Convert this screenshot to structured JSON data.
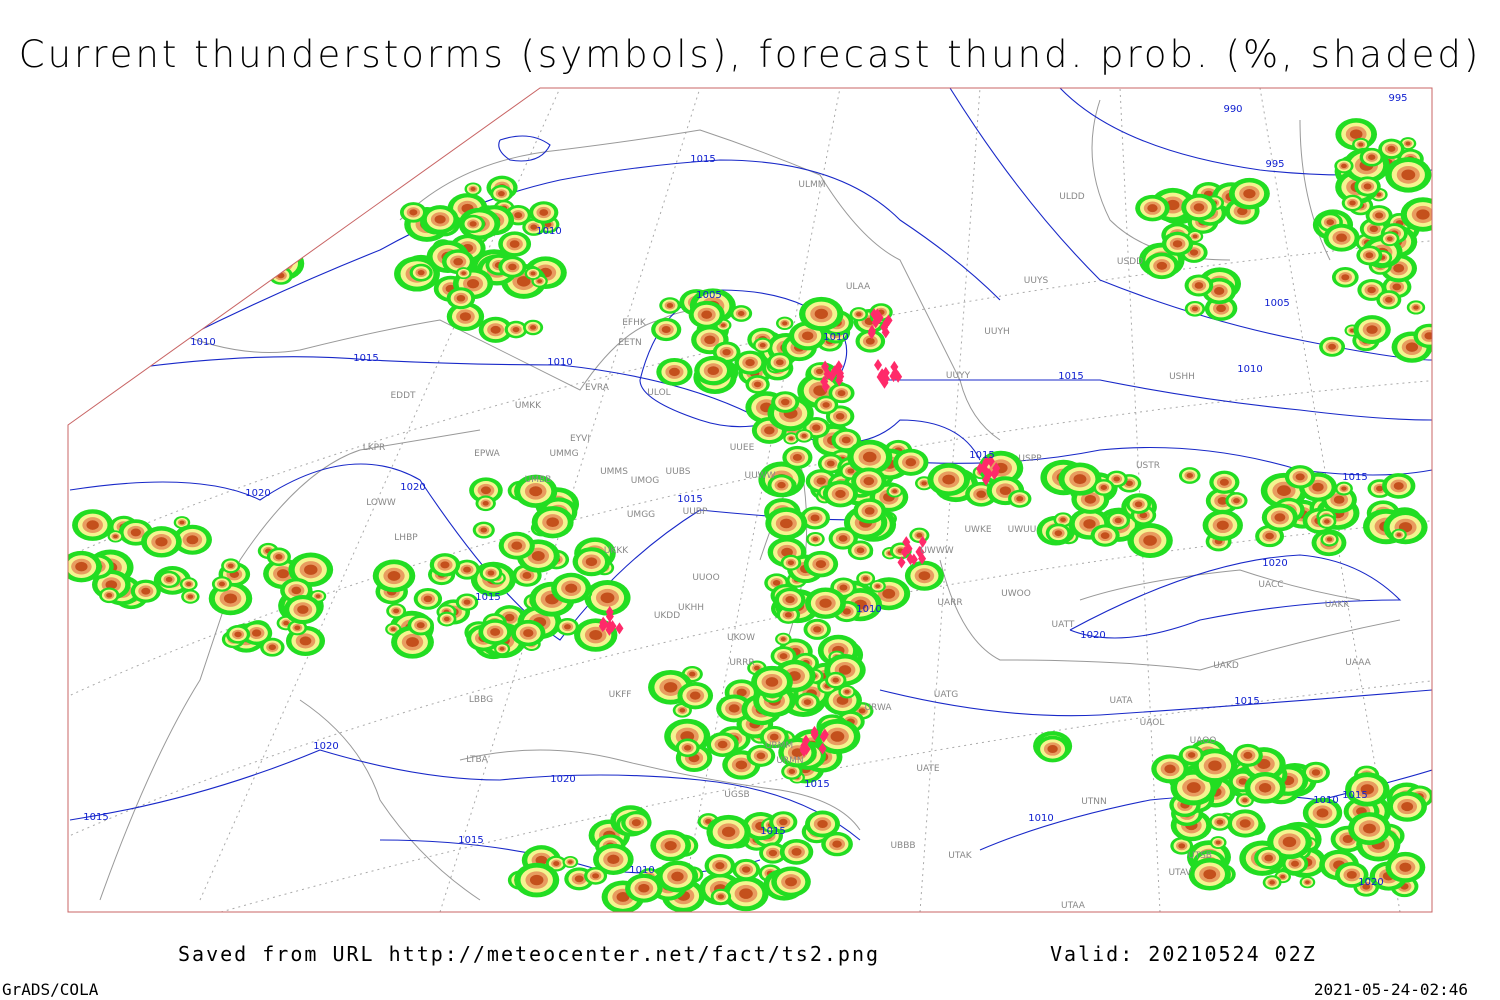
{
  "header": {
    "title": "Current thunderstorms (symbols), forecast thund. prob. (%, shaded)"
  },
  "footer": {
    "source": "Saved from URL http://meteocenter.net/fact/ts2.png",
    "valid": "Valid: 20210524 02Z",
    "software": "GrADS/COLA",
    "timestamp": "2021-05-24-02:46"
  },
  "isobar_labels": [
    "990",
    "995",
    "995",
    "1015",
    "1010",
    "1005",
    "1010",
    "1010",
    "1015",
    "1010",
    "1015",
    "1005",
    "1010",
    "1015",
    "1015",
    "1020",
    "1020",
    "1015",
    "1015",
    "1010",
    "1020",
    "1020",
    "1015",
    "1020",
    "1020",
    "1015",
    "1010",
    "1015",
    "1010",
    "1015",
    "1015",
    "1015",
    "1010",
    "1020"
  ],
  "station_labels": [
    "ULMM",
    "ULDD",
    "USDD",
    "ULAA",
    "UUYS",
    "EFHK",
    "UUYH",
    "EETN",
    "USHH",
    "UUYY",
    "EVRA",
    "EDDT",
    "ULOL",
    "UMKK",
    "UUEE",
    "EYVI",
    "EPWA",
    "LKPR",
    "UMMG",
    "UUWW",
    "UMMS",
    "UUBS",
    "UMBB",
    "UMOG",
    "UUBP",
    "LOWW",
    "UMGG",
    "LHBP",
    "UKKK",
    "UUOO",
    "UKHH",
    "UKDD",
    "USPP",
    "USTR",
    "UWKE",
    "UWUU",
    "UWWW",
    "UARR",
    "UWOO",
    "UATT",
    "UACC",
    "UAKK",
    "UAKD",
    "UATG",
    "URWA",
    "UATE",
    "UAOO",
    "UAOL",
    "UATA",
    "UAAA",
    "UTNN",
    "UBBB",
    "UTAK",
    "UTSB",
    "UTAV",
    "UTAA",
    "UKFF",
    "LBBG",
    "LTBA",
    "UGSB",
    "URMM",
    "URMN",
    "URRR",
    "UKOW"
  ]
}
